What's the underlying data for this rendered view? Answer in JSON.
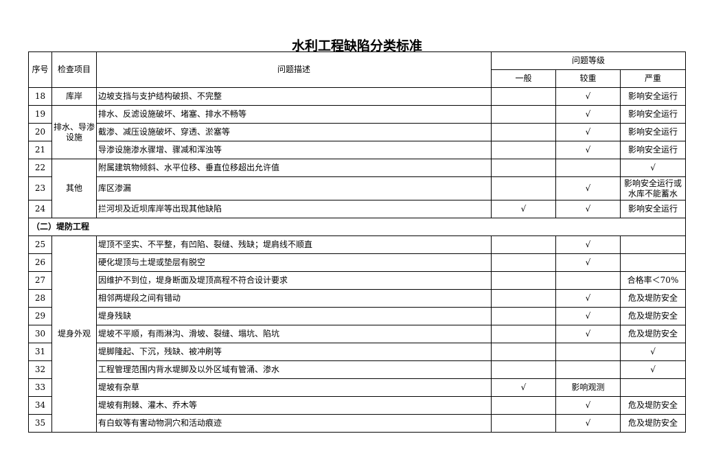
{
  "title": "水利工程缺陷分类标准",
  "headers": {
    "no": "序号",
    "item": "检查项目",
    "desc": "问题描述",
    "level": "问题等级",
    "general": "一般",
    "moderate": "较重",
    "severe": "严重"
  },
  "groups": [
    {
      "item": "库岸",
      "rows": [
        {
          "no": "18",
          "desc": "边坡支挡与支护结构破损、不完整",
          "general": "",
          "moderate": "√",
          "severe": "影响安全运行"
        }
      ]
    },
    {
      "item": "排水、导渗设施",
      "rows": [
        {
          "no": "19",
          "desc": "排水、反滤设施破坏、堵塞、排水不畅等",
          "general": "",
          "moderate": "√",
          "severe": "影响安全运行"
        },
        {
          "no": "20",
          "desc": "截渗、减压设施破坏、穿透、淤塞等",
          "general": "",
          "moderate": "√",
          "severe": "影响安全运行"
        },
        {
          "no": "21",
          "desc": "导渗设施渗水骤增、骤减和浑浊等",
          "general": "",
          "moderate": "√",
          "severe": "影响安全运行"
        }
      ]
    },
    {
      "item": "其他",
      "rows": [
        {
          "no": "22",
          "desc": "附属建筑物倾斜、水平位移、垂直位移超出允许值",
          "general": "",
          "moderate": "",
          "severe": "√"
        },
        {
          "no": "23",
          "desc": "库区渗漏",
          "general": "",
          "moderate": "√",
          "severe": "影响安全运行或水库不能蓄水"
        },
        {
          "no": "24",
          "desc": "拦河坝及近坝库岸等出现其他缺陷",
          "general": "√",
          "moderate": "√",
          "severe": "影响安全运行"
        }
      ]
    },
    {
      "section": "（二）堤防工程"
    },
    {
      "item": "堤身外观",
      "rows": [
        {
          "no": "25",
          "desc": "堤顶不坚实、不平整，有凹陷、裂缝、残缺；堤肩线不顺直",
          "general": "",
          "moderate": "√",
          "severe": ""
        },
        {
          "no": "26",
          "desc": "硬化堤顶与土堤或垫层有脱空",
          "general": "",
          "moderate": "√",
          "severe": ""
        },
        {
          "no": "27",
          "desc": "因维护不到位，堤身断面及堤顶高程不符合设计要求",
          "general": "",
          "moderate": "",
          "severe": "合格率＜70%"
        },
        {
          "no": "28",
          "desc": "相邻两堤段之间有错动",
          "general": "",
          "moderate": "√",
          "severe": "危及堤防安全"
        },
        {
          "no": "29",
          "desc": "堤身残缺",
          "general": "",
          "moderate": "√",
          "severe": "危及堤防安全"
        },
        {
          "no": "30",
          "desc": "堤坡不平顺，有雨淋沟、滑坡、裂缝、塌坑、陷坑",
          "general": "",
          "moderate": "√",
          "severe": "危及堤防安全"
        },
        {
          "no": "31",
          "desc": "堤脚隆起、下沉，残缺、被冲刷等",
          "general": "",
          "moderate": "",
          "severe": "√"
        },
        {
          "no": "32",
          "desc": "工程管理范围内背水堤脚及以外区域有管涌、渗水",
          "general": "",
          "moderate": "",
          "severe": "√"
        },
        {
          "no": "33",
          "desc": "堤坡有杂草",
          "general": "√",
          "moderate": "影响观测",
          "severe": ""
        },
        {
          "no": "34",
          "desc": "堤坡有荆棘、灌木、乔木等",
          "general": "",
          "moderate": "√",
          "severe": "危及堤防安全"
        },
        {
          "no": "35",
          "desc": "有白蚁等有害动物洞穴和活动痕迹",
          "general": "",
          "moderate": "√",
          "severe": "危及堤防安全"
        }
      ]
    }
  ]
}
